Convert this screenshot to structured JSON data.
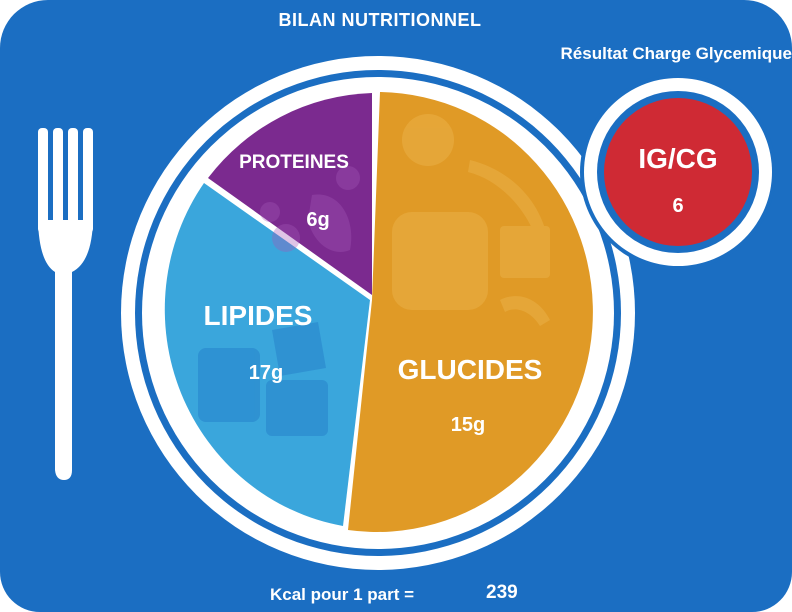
{
  "header": {
    "title": "BILAN  NUTRITIONNEL",
    "subtitle": "Résultat Charge Glycemique"
  },
  "plate": {
    "sections": [
      {
        "name": "PROTEINES",
        "value": "6g",
        "color": "#7b2a8f"
      },
      {
        "name": "LIPIDES",
        "value": "17g",
        "color": "#3aa6dc"
      },
      {
        "name": "GLUCIDES",
        "value": "15g",
        "color": "#e09a26"
      }
    ]
  },
  "index_badge": {
    "label": "IG/CG",
    "value": "6",
    "color": "#cf2a34"
  },
  "footer": {
    "label": "Kcal pour 1 part =",
    "value": "239"
  },
  "colors": {
    "background": "#1b6ec2",
    "plate": "#ffffff"
  }
}
